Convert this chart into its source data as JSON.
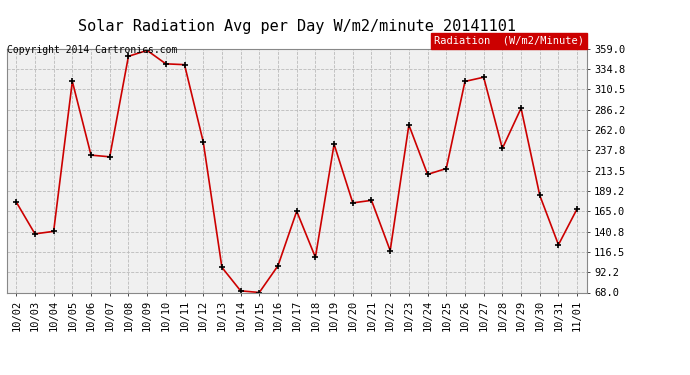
{
  "title": "Solar Radiation Avg per Day W/m2/minute 20141101",
  "copyright_text": "Copyright 2014 Cartronics.com",
  "legend_label": "Radiation  (W/m2/Minute)",
  "x_labels": [
    "10/02",
    "10/03",
    "10/04",
    "10/05",
    "10/06",
    "10/07",
    "10/08",
    "10/09",
    "10/10",
    "10/11",
    "10/12",
    "10/13",
    "10/14",
    "10/15",
    "10/16",
    "10/17",
    "10/18",
    "10/19",
    "10/20",
    "10/21",
    "10/22",
    "10/23",
    "10/24",
    "10/25",
    "10/26",
    "10/27",
    "10/28",
    "10/29",
    "10/30",
    "10/31",
    "11/01"
  ],
  "y_values": [
    176,
    138,
    141,
    320,
    232,
    230,
    350,
    357,
    341,
    340,
    248,
    98,
    70,
    68,
    100,
    165,
    110,
    245,
    175,
    178,
    118,
    268,
    209,
    216,
    320,
    325,
    240,
    288,
    184,
    125,
    168
  ],
  "y_min": 68.0,
  "y_max": 359.0,
  "y_ticks": [
    68.0,
    92.2,
    116.5,
    140.8,
    165.0,
    189.2,
    213.5,
    237.8,
    262.0,
    286.2,
    310.5,
    334.8,
    359.0
  ],
  "line_color": "#cc0000",
  "marker_color": "#000000",
  "bg_color": "#ffffff",
  "plot_bg_color": "#f0f0f0",
  "grid_color": "#bbbbbb",
  "title_fontsize": 11,
  "copyright_fontsize": 7,
  "tick_fontsize": 7.5,
  "legend_bg_color": "#cc0000",
  "legend_text_color": "#ffffff",
  "legend_fontsize": 7.5
}
